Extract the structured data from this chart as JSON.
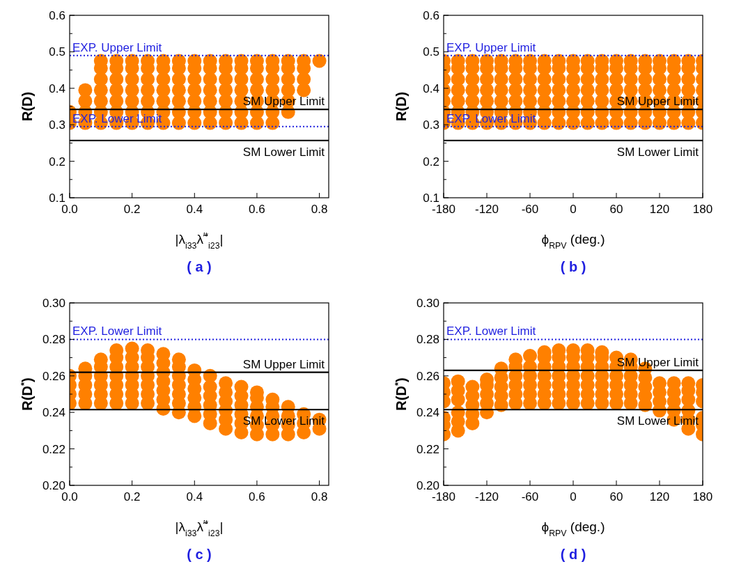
{
  "chart_data": [
    {
      "type": "scatter",
      "title": "( a )",
      "xlabel": "|λ$_{i33}$λ̃$^{′*}$$_{i23}$|",
      "ylabel": "R(D)",
      "marker": "circle",
      "xlim": [
        0,
        0.83
      ],
      "ylim": [
        0.1,
        0.6
      ],
      "xticks": [
        {
          "value": 0,
          "label": "0.0"
        },
        0.2,
        0.4,
        0.6,
        0.8
      ],
      "yticks": [
        0.1,
        {
          "value": 0.15,
          "label": null
        },
        0.2,
        {
          "value": 0.25,
          "label": null
        },
        0.3,
        {
          "value": 0.35,
          "label": null
        },
        0.4,
        {
          "value": 0.45,
          "label": null
        },
        0.5,
        {
          "value": 0.55,
          "label": null
        },
        0.6
      ],
      "ref_lines": [
        {
          "axis": "y",
          "value": 0.49,
          "label": "EXP. Upper Limit",
          "color": "#1f1fe0",
          "line_style": "dotted"
        },
        {
          "axis": "y",
          "value": 0.342,
          "label": "SM Upper Limit",
          "color": "#000000",
          "line_style": "solid"
        },
        {
          "axis": "y",
          "value": 0.295,
          "label": "EXP. Lower Limit",
          "color": "#1f1fe0",
          "line_style": "dotted"
        },
        {
          "axis": "y",
          "value": 0.257,
          "label": "SM Lower Limit",
          "color": "#000000",
          "line_style": "solid"
        }
      ],
      "series": [
        {
          "type": "scatter",
          "color": "#ff8000",
          "x": [
            0,
            0.05,
            0.1,
            0.15,
            0.2,
            0.25,
            0.3,
            0.35,
            0.4,
            0.45,
            0.5,
            0.55,
            0.6,
            0.65,
            0,
            0.05,
            0.1,
            0.15,
            0.2,
            0.25,
            0.3,
            0.35,
            0.4,
            0.45,
            0.5,
            0.55,
            0.6,
            0.65,
            0.7,
            0.05,
            0.1,
            0.15,
            0.2,
            0.25,
            0.3,
            0.35,
            0.4,
            0.45,
            0.5,
            0.55,
            0.6,
            0.65,
            0.7,
            0.05,
            0.1,
            0.15,
            0.2,
            0.25,
            0.3,
            0.35,
            0.4,
            0.45,
            0.5,
            0.55,
            0.6,
            0.65,
            0.7,
            0.75,
            0.1,
            0.15,
            0.2,
            0.25,
            0.3,
            0.35,
            0.4,
            0.45,
            0.5,
            0.55,
            0.6,
            0.65,
            0.7,
            0.75,
            0.1,
            0.15,
            0.2,
            0.25,
            0.3,
            0.35,
            0.4,
            0.45,
            0.5,
            0.55,
            0.6,
            0.65,
            0.7,
            0.75,
            0.1,
            0.15,
            0.2,
            0.25,
            0.3,
            0.35,
            0.4,
            0.45,
            0.5,
            0.55,
            0.6,
            0.65,
            0.7,
            0.75,
            0.8
          ],
          "values": [
            0.305,
            0.305,
            0.305,
            0.305,
            0.305,
            0.305,
            0.305,
            0.305,
            0.305,
            0.305,
            0.305,
            0.305,
            0.305,
            0.305,
            0.335,
            0.335,
            0.335,
            0.335,
            0.335,
            0.335,
            0.335,
            0.335,
            0.335,
            0.335,
            0.335,
            0.335,
            0.335,
            0.335,
            0.335,
            0.365,
            0.365,
            0.365,
            0.365,
            0.365,
            0.365,
            0.365,
            0.365,
            0.365,
            0.365,
            0.365,
            0.365,
            0.365,
            0.365,
            0.395,
            0.395,
            0.395,
            0.395,
            0.395,
            0.395,
            0.395,
            0.395,
            0.395,
            0.395,
            0.395,
            0.395,
            0.395,
            0.395,
            0.395,
            0.425,
            0.425,
            0.425,
            0.425,
            0.425,
            0.425,
            0.425,
            0.425,
            0.425,
            0.425,
            0.425,
            0.425,
            0.425,
            0.425,
            0.455,
            0.455,
            0.455,
            0.455,
            0.455,
            0.455,
            0.455,
            0.455,
            0.455,
            0.455,
            0.455,
            0.455,
            0.455,
            0.455,
            0.475,
            0.475,
            0.475,
            0.475,
            0.475,
            0.475,
            0.475,
            0.475,
            0.475,
            0.475,
            0.475,
            0.475,
            0.475,
            0.475,
            0.475
          ]
        }
      ]
    },
    {
      "type": "scatter",
      "title": "( b )",
      "xlabel": "ϕ$_{RPV}$ (deg.)",
      "ylabel": "R(D)",
      "marker": "circle",
      "xlim": [
        -180,
        180
      ],
      "ylim": [
        0.1,
        0.6
      ],
      "xticks": [
        -180,
        -120,
        -60,
        0,
        60,
        120,
        180
      ],
      "yticks": [
        0.1,
        {
          "value": 0.15,
          "label": null
        },
        0.2,
        {
          "value": 0.25,
          "label": null
        },
        0.3,
        {
          "value": 0.35,
          "label": null
        },
        0.4,
        {
          "value": 0.45,
          "label": null
        },
        0.5,
        {
          "value": 0.55,
          "label": null
        },
        0.6
      ],
      "ref_lines": [
        {
          "axis": "y",
          "value": 0.49,
          "label": "EXP. Upper Limit",
          "color": "#1f1fe0",
          "line_style": "dotted"
        },
        {
          "axis": "y",
          "value": 0.342,
          "label": "SM Upper Limit",
          "color": "#000000",
          "line_style": "solid"
        },
        {
          "axis": "y",
          "value": 0.295,
          "label": "EXP. Lower Limit",
          "color": "#1f1fe0",
          "line_style": "dotted"
        },
        {
          "axis": "y",
          "value": 0.257,
          "label": "SM Lower Limit",
          "color": "#000000",
          "line_style": "solid"
        }
      ],
      "series": [
        {
          "type": "scatter",
          "color": "#ff8000",
          "x": [
            -180,
            -160,
            -140,
            -120,
            -100,
            -80,
            -60,
            -40,
            -20,
            0,
            20,
            40,
            60,
            80,
            100,
            120,
            140,
            160,
            180,
            -180,
            -160,
            -140,
            -120,
            -100,
            -80,
            -60,
            -40,
            -20,
            0,
            20,
            40,
            60,
            80,
            100,
            120,
            140,
            160,
            180,
            -180,
            -160,
            -140,
            -120,
            -100,
            -80,
            -60,
            -40,
            -20,
            0,
            20,
            40,
            60,
            80,
            100,
            120,
            140,
            160,
            180,
            -180,
            -160,
            -140,
            -120,
            -100,
            -80,
            -60,
            -40,
            -20,
            0,
            20,
            40,
            60,
            80,
            100,
            120,
            140,
            160,
            180,
            -180,
            -160,
            -140,
            -120,
            -100,
            -80,
            -60,
            -40,
            -20,
            0,
            20,
            40,
            60,
            80,
            100,
            120,
            140,
            160,
            180,
            -180,
            -160,
            -140,
            -120,
            -100,
            -80,
            -60,
            -40,
            -20,
            0,
            20,
            40,
            60,
            80,
            100,
            120,
            140,
            160,
            180,
            -180,
            -160,
            -140,
            -120,
            -100,
            -80,
            -60,
            -40,
            -20,
            0,
            20,
            40,
            60,
            80,
            100,
            120,
            140,
            160,
            180
          ],
          "values": [
            0.305,
            0.305,
            0.305,
            0.305,
            0.305,
            0.305,
            0.305,
            0.305,
            0.305,
            0.305,
            0.305,
            0.305,
            0.305,
            0.305,
            0.305,
            0.305,
            0.305,
            0.305,
            0.305,
            0.335,
            0.335,
            0.335,
            0.335,
            0.335,
            0.335,
            0.335,
            0.335,
            0.335,
            0.335,
            0.335,
            0.335,
            0.335,
            0.335,
            0.335,
            0.335,
            0.335,
            0.335,
            0.335,
            0.365,
            0.365,
            0.365,
            0.365,
            0.365,
            0.365,
            0.365,
            0.365,
            0.365,
            0.365,
            0.365,
            0.365,
            0.365,
            0.365,
            0.365,
            0.365,
            0.365,
            0.365,
            0.365,
            0.395,
            0.395,
            0.395,
            0.395,
            0.395,
            0.395,
            0.395,
            0.395,
            0.395,
            0.395,
            0.395,
            0.395,
            0.395,
            0.395,
            0.395,
            0.395,
            0.395,
            0.395,
            0.395,
            0.425,
            0.425,
            0.425,
            0.425,
            0.425,
            0.425,
            0.425,
            0.425,
            0.425,
            0.425,
            0.425,
            0.425,
            0.425,
            0.425,
            0.425,
            0.425,
            0.425,
            0.425,
            0.425,
            0.455,
            0.455,
            0.455,
            0.455,
            0.455,
            0.455,
            0.455,
            0.455,
            0.455,
            0.455,
            0.455,
            0.455,
            0.455,
            0.455,
            0.455,
            0.455,
            0.455,
            0.455,
            0.455,
            0.475,
            0.475,
            0.475,
            0.475,
            0.475,
            0.475,
            0.475,
            0.475,
            0.475,
            0.475,
            0.475,
            0.475,
            0.475,
            0.475,
            0.475,
            0.475,
            0.475,
            0.475,
            0.475
          ]
        }
      ]
    },
    {
      "type": "scatter",
      "title": "( c )",
      "xlabel": "|λ$_{i33}$λ̃$^{′*}$$_{i23}$|",
      "ylabel": "R(D$^{*}$)",
      "marker": "circle",
      "xlim": [
        0,
        0.83
      ],
      "ylim": [
        0.2,
        0.3
      ],
      "xticks": [
        {
          "value": 0,
          "label": "0.0"
        },
        0.2,
        0.4,
        0.6,
        0.8
      ],
      "yticks": [
        {
          "value": 0.2,
          "label": "0.20"
        },
        {
          "value": 0.21,
          "label": null
        },
        0.22,
        {
          "value": 0.23,
          "label": null
        },
        0.24,
        {
          "value": 0.25,
          "label": null
        },
        0.26,
        {
          "value": 0.27,
          "label": null
        },
        0.28,
        {
          "value": 0.29,
          "label": null
        },
        {
          "value": 0.3,
          "label": "0.30"
        }
      ],
      "ref_lines": [
        {
          "axis": "y",
          "value": 0.28,
          "label": "EXP. Lower Limit",
          "color": "#1f1fe0",
          "line_style": "dotted"
        },
        {
          "axis": "y",
          "value": 0.262,
          "label": "SM Upper Limit",
          "color": "#000000",
          "line_style": "solid"
        },
        {
          "axis": "y",
          "value": 0.2415,
          "label": "SM Lower Limit",
          "color": "#000000",
          "line_style": "solid"
        }
      ],
      "series": [
        {
          "type": "scatter",
          "color": "#ff8000",
          "x": [
            0,
            0,
            0,
            0,
            0.05,
            0.05,
            0.05,
            0.05,
            0.05,
            0.1,
            0.1,
            0.1,
            0.1,
            0.1,
            0.1,
            0.15,
            0.15,
            0.15,
            0.15,
            0.15,
            0.15,
            0.15,
            0.2,
            0.2,
            0.2,
            0.2,
            0.2,
            0.2,
            0.2,
            0.25,
            0.25,
            0.25,
            0.25,
            0.25,
            0.25,
            0.25,
            0.3,
            0.3,
            0.3,
            0.3,
            0.3,
            0.3,
            0.3,
            0.35,
            0.35,
            0.35,
            0.35,
            0.35,
            0.35,
            0.35,
            0.4,
            0.4,
            0.4,
            0.4,
            0.4,
            0.4,
            0.45,
            0.45,
            0.45,
            0.45,
            0.45,
            0.45,
            0.5,
            0.5,
            0.5,
            0.5,
            0.5,
            0.5,
            0.55,
            0.55,
            0.55,
            0.55,
            0.55,
            0.55,
            0.6,
            0.6,
            0.6,
            0.6,
            0.6,
            0.6,
            0.65,
            0.65,
            0.65,
            0.65,
            0.65,
            0.7,
            0.7,
            0.7,
            0.7,
            0.75,
            0.75,
            0.75,
            0.8,
            0.8
          ],
          "values": [
            0.245,
            0.25,
            0.255,
            0.26,
            0.245,
            0.25,
            0.255,
            0.26,
            0.264,
            0.245,
            0.25,
            0.255,
            0.26,
            0.265,
            0.269,
            0.245,
            0.25,
            0.255,
            0.26,
            0.265,
            0.27,
            0.274,
            0.245,
            0.25,
            0.255,
            0.26,
            0.265,
            0.27,
            0.275,
            0.245,
            0.25,
            0.255,
            0.26,
            0.265,
            0.27,
            0.274,
            0.242,
            0.247,
            0.252,
            0.257,
            0.262,
            0.267,
            0.272,
            0.24,
            0.245,
            0.25,
            0.255,
            0.26,
            0.265,
            0.269,
            0.238,
            0.243,
            0.248,
            0.253,
            0.258,
            0.263,
            0.234,
            0.239,
            0.244,
            0.249,
            0.254,
            0.26,
            0.231,
            0.236,
            0.241,
            0.246,
            0.251,
            0.256,
            0.229,
            0.234,
            0.239,
            0.244,
            0.249,
            0.254,
            0.228,
            0.233,
            0.238,
            0.243,
            0.248,
            0.251,
            0.228,
            0.233,
            0.238,
            0.243,
            0.247,
            0.228,
            0.233,
            0.238,
            0.243,
            0.229,
            0.234,
            0.239,
            0.231,
            0.236
          ]
        }
      ]
    },
    {
      "type": "scatter",
      "title": "( d )",
      "xlabel": "ϕ$_{RPV}$ (deg.)",
      "ylabel": "R(D$^{*}$)",
      "marker": "circle",
      "xlim": [
        -180,
        180
      ],
      "ylim": [
        0.2,
        0.3
      ],
      "xticks": [
        -180,
        -120,
        -60,
        0,
        60,
        120,
        180
      ],
      "yticks": [
        {
          "value": 0.2,
          "label": "0.20"
        },
        {
          "value": 0.21,
          "label": null
        },
        0.22,
        {
          "value": 0.23,
          "label": null
        },
        0.24,
        {
          "value": 0.25,
          "label": null
        },
        0.26,
        {
          "value": 0.27,
          "label": null
        },
        0.28,
        {
          "value": 0.29,
          "label": null
        },
        {
          "value": 0.3,
          "label": "0.30"
        }
      ],
      "ref_lines": [
        {
          "axis": "y",
          "value": 0.28,
          "label": "EXP. Lower Limit",
          "color": "#1f1fe0",
          "line_style": "dotted"
        },
        {
          "axis": "y",
          "value": 0.263,
          "label": "SM Upper Limit",
          "color": "#000000",
          "line_style": "solid"
        },
        {
          "axis": "y",
          "value": 0.2415,
          "label": "SM Lower Limit",
          "color": "#000000",
          "line_style": "solid"
        }
      ],
      "series": [
        {
          "type": "scatter",
          "color": "#ff8000",
          "x": [
            -180,
            -180,
            -180,
            -180,
            -180,
            -180,
            -160,
            -160,
            -160,
            -160,
            -160,
            -160,
            -140,
            -140,
            -140,
            -140,
            -140,
            -120,
            -120,
            -120,
            -120,
            -120,
            -100,
            -100,
            -100,
            -100,
            -100,
            -80,
            -80,
            -80,
            -80,
            -80,
            -80,
            -60,
            -60,
            -60,
            -60,
            -60,
            -60,
            -40,
            -40,
            -40,
            -40,
            -40,
            -40,
            -40,
            -20,
            -20,
            -20,
            -20,
            -20,
            -20,
            -20,
            0,
            0,
            0,
            0,
            0,
            0,
            0,
            20,
            20,
            20,
            20,
            20,
            20,
            20,
            40,
            40,
            40,
            40,
            40,
            40,
            40,
            60,
            60,
            60,
            60,
            60,
            60,
            80,
            80,
            80,
            80,
            80,
            80,
            100,
            100,
            100,
            100,
            100,
            120,
            120,
            120,
            120,
            140,
            140,
            140,
            140,
            140,
            160,
            160,
            160,
            160,
            160,
            160,
            180,
            180,
            180,
            180,
            180,
            180
          ],
          "values": [
            0.228,
            0.233,
            0.237,
            0.246,
            0.251,
            0.256,
            0.23,
            0.235,
            0.24,
            0.247,
            0.252,
            0.257,
            0.234,
            0.239,
            0.244,
            0.249,
            0.254,
            0.24,
            0.245,
            0.25,
            0.255,
            0.258,
            0.244,
            0.249,
            0.254,
            0.259,
            0.264,
            0.245,
            0.25,
            0.255,
            0.26,
            0.265,
            0.269,
            0.245,
            0.25,
            0.255,
            0.26,
            0.265,
            0.271,
            0.245,
            0.25,
            0.255,
            0.26,
            0.265,
            0.27,
            0.273,
            0.245,
            0.25,
            0.255,
            0.26,
            0.265,
            0.27,
            0.274,
            0.245,
            0.25,
            0.255,
            0.26,
            0.265,
            0.27,
            0.274,
            0.245,
            0.25,
            0.255,
            0.26,
            0.265,
            0.27,
            0.274,
            0.245,
            0.25,
            0.255,
            0.26,
            0.265,
            0.27,
            0.273,
            0.245,
            0.25,
            0.255,
            0.26,
            0.265,
            0.27,
            0.245,
            0.25,
            0.255,
            0.26,
            0.265,
            0.269,
            0.244,
            0.249,
            0.254,
            0.259,
            0.264,
            0.241,
            0.246,
            0.251,
            0.256,
            0.236,
            0.241,
            0.246,
            0.251,
            0.256,
            0.231,
            0.236,
            0.241,
            0.247,
            0.252,
            0.256,
            0.228,
            0.233,
            0.237,
            0.246,
            0.251,
            0.255
          ]
        }
      ]
    }
  ]
}
